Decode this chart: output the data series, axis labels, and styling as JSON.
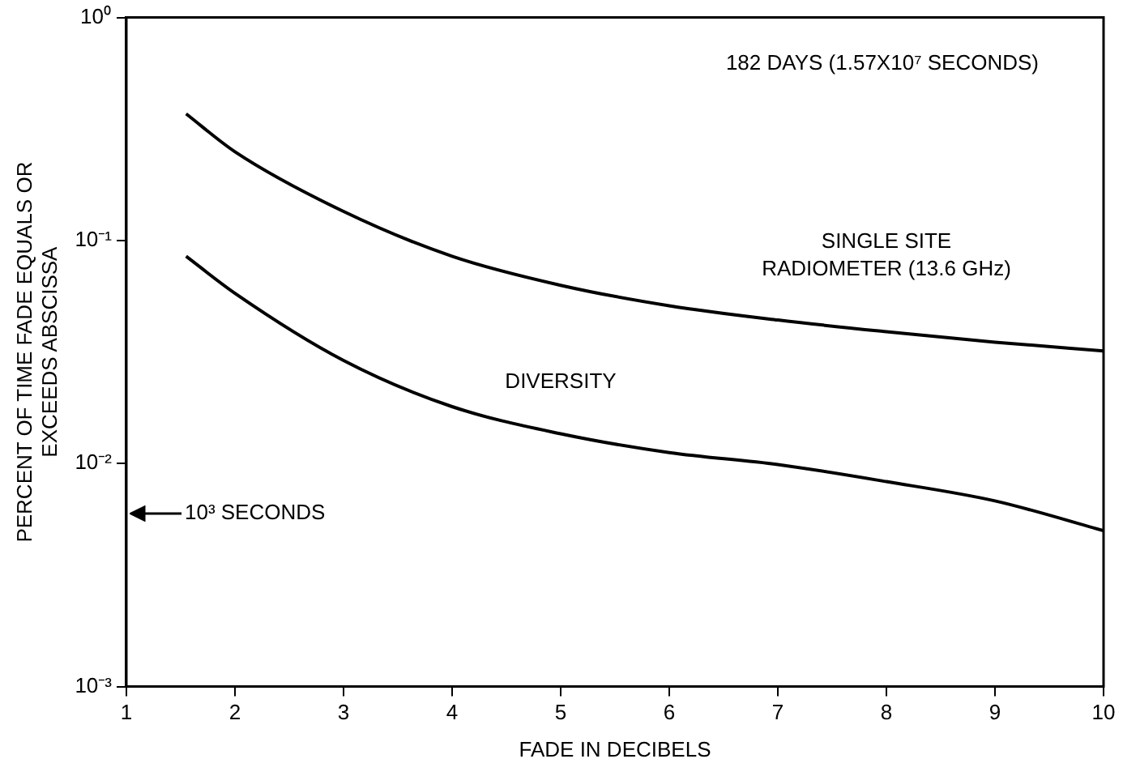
{
  "chart_data": {
    "type": "line",
    "xlabel": "FADE IN DECIBELS",
    "ylabel": "PERCENT OF TIME FADE EQUALS OR\nEXCEEDS ABSCISSA",
    "x": [
      1.55,
      2,
      3,
      4,
      5,
      6,
      7,
      8,
      9,
      10
    ],
    "series": [
      {
        "name": "SINGLE SITE RADIOMETER (13.6 GHz)",
        "color": "#000000",
        "values": [
          0.37,
          0.25,
          0.135,
          0.085,
          0.063,
          0.051,
          0.044,
          0.039,
          0.035,
          0.032
        ]
      },
      {
        "name": "DIVERSITY",
        "color": "#000000",
        "values": [
          0.085,
          0.058,
          0.029,
          0.018,
          0.0136,
          0.0112,
          0.0099,
          0.0083,
          0.0068,
          0.005
        ]
      }
    ],
    "xlim": [
      1,
      10
    ],
    "xticks": [
      1,
      2,
      3,
      4,
      5,
      6,
      7,
      8,
      9,
      10
    ],
    "ylim": [
      0.001,
      1
    ],
    "yticks": [
      {
        "value": 1,
        "label": "10⁰"
      },
      {
        "value": 0.1,
        "label": "10⁻¹"
      },
      {
        "value": 0.01,
        "label": "10⁻²"
      },
      {
        "value": 0.001,
        "label": "10⁻³"
      }
    ],
    "log": "y",
    "grid": false,
    "legend": false,
    "marker": "none",
    "line_style": "solid",
    "ref_lines": [
      {
        "axis": "y",
        "value": 0.006,
        "label": "10³ SECONDS"
      }
    ],
    "annotations": [
      "182 DAYS (1.57X10⁷ SECONDS)"
    ]
  }
}
